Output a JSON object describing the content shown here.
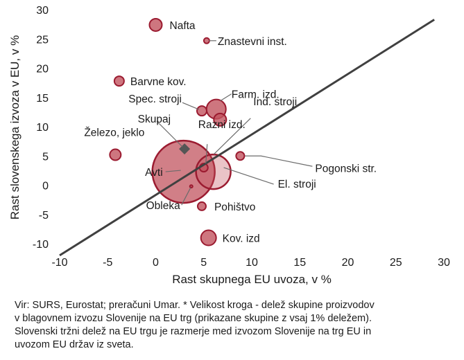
{
  "chart_data": {
    "type": "scatter",
    "xlabel": "Rast skupnega EU uvoza, v %",
    "ylabel": "Rast slovenskega izvoza v EU, v %",
    "xlim": [
      -10,
      30
    ],
    "ylim": [
      -10,
      30
    ],
    "xticks": [
      "-10",
      "-5",
      "0",
      "5",
      "10",
      "15",
      "20",
      "25",
      "30"
    ],
    "yticks": [
      "-10",
      "-5",
      "0",
      "5",
      "10",
      "15",
      "20",
      "25",
      "30"
    ],
    "grid": false,
    "bubble_color": "#c2545f",
    "bubble_edge": "#9b1b30",
    "line_color": "#404040",
    "reference_line": {
      "x": [
        -10,
        29
      ],
      "y": [
        -12,
        28.3
      ]
    },
    "points": [
      {
        "label": "Nafta",
        "x": 0.0,
        "y": 27.4,
        "r": 9
      },
      {
        "label": "Znastevni inst.",
        "x": 5.3,
        "y": 24.7,
        "r": 4
      },
      {
        "label": "Barvne kov.",
        "x": -3.8,
        "y": 17.8,
        "r": 7
      },
      {
        "label": "Farm. izd.",
        "x": 6.3,
        "y": 13.0,
        "r": 14
      },
      {
        "label": "Spec. stroji",
        "x": 4.8,
        "y": 12.7,
        "r": 7
      },
      {
        "label": "Ind. stroji",
        "x": 6.7,
        "y": 11.2,
        "r": 9
      },
      {
        "label": "Skupaj",
        "x": 3.0,
        "y": 6.2,
        "marker": "diamond"
      },
      {
        "label": "Razni izd.",
        "x": 5.0,
        "y": 3.0,
        "r": 6
      },
      {
        "label": "Železo, jeklo",
        "x": -4.2,
        "y": 5.2,
        "r": 8
      },
      {
        "label": "Pogonski str.",
        "x": 8.8,
        "y": 5.0,
        "r": 6
      },
      {
        "label": "Avti",
        "x": 2.9,
        "y": 2.3,
        "r": 45
      },
      {
        "label": "El. stroji",
        "x": 6.0,
        "y": 2.3,
        "r": 25
      },
      {
        "label": "Obleka",
        "x": 3.7,
        "y": -0.2,
        "r": 2
      },
      {
        "label": "Pohištvo",
        "x": 4.8,
        "y": -3.6,
        "r": 6
      },
      {
        "label": "Kov. izd",
        "x": 5.5,
        "y": -9.0,
        "r": 11
      }
    ]
  },
  "footnote": [
    "Vir: SURS, Eurostat; preračuni Umar. * Velikost kroga - delež skupine proizvodov",
    "v blagovnem izvozu Slovenije na EU trg (prikazane skupine z vsaj 1% deležem).",
    "Slovenski tržni delež na EU trgu je razmerje med izvozom Slovenije na trg EU in",
    "uvozom EU držav  iz sveta."
  ]
}
